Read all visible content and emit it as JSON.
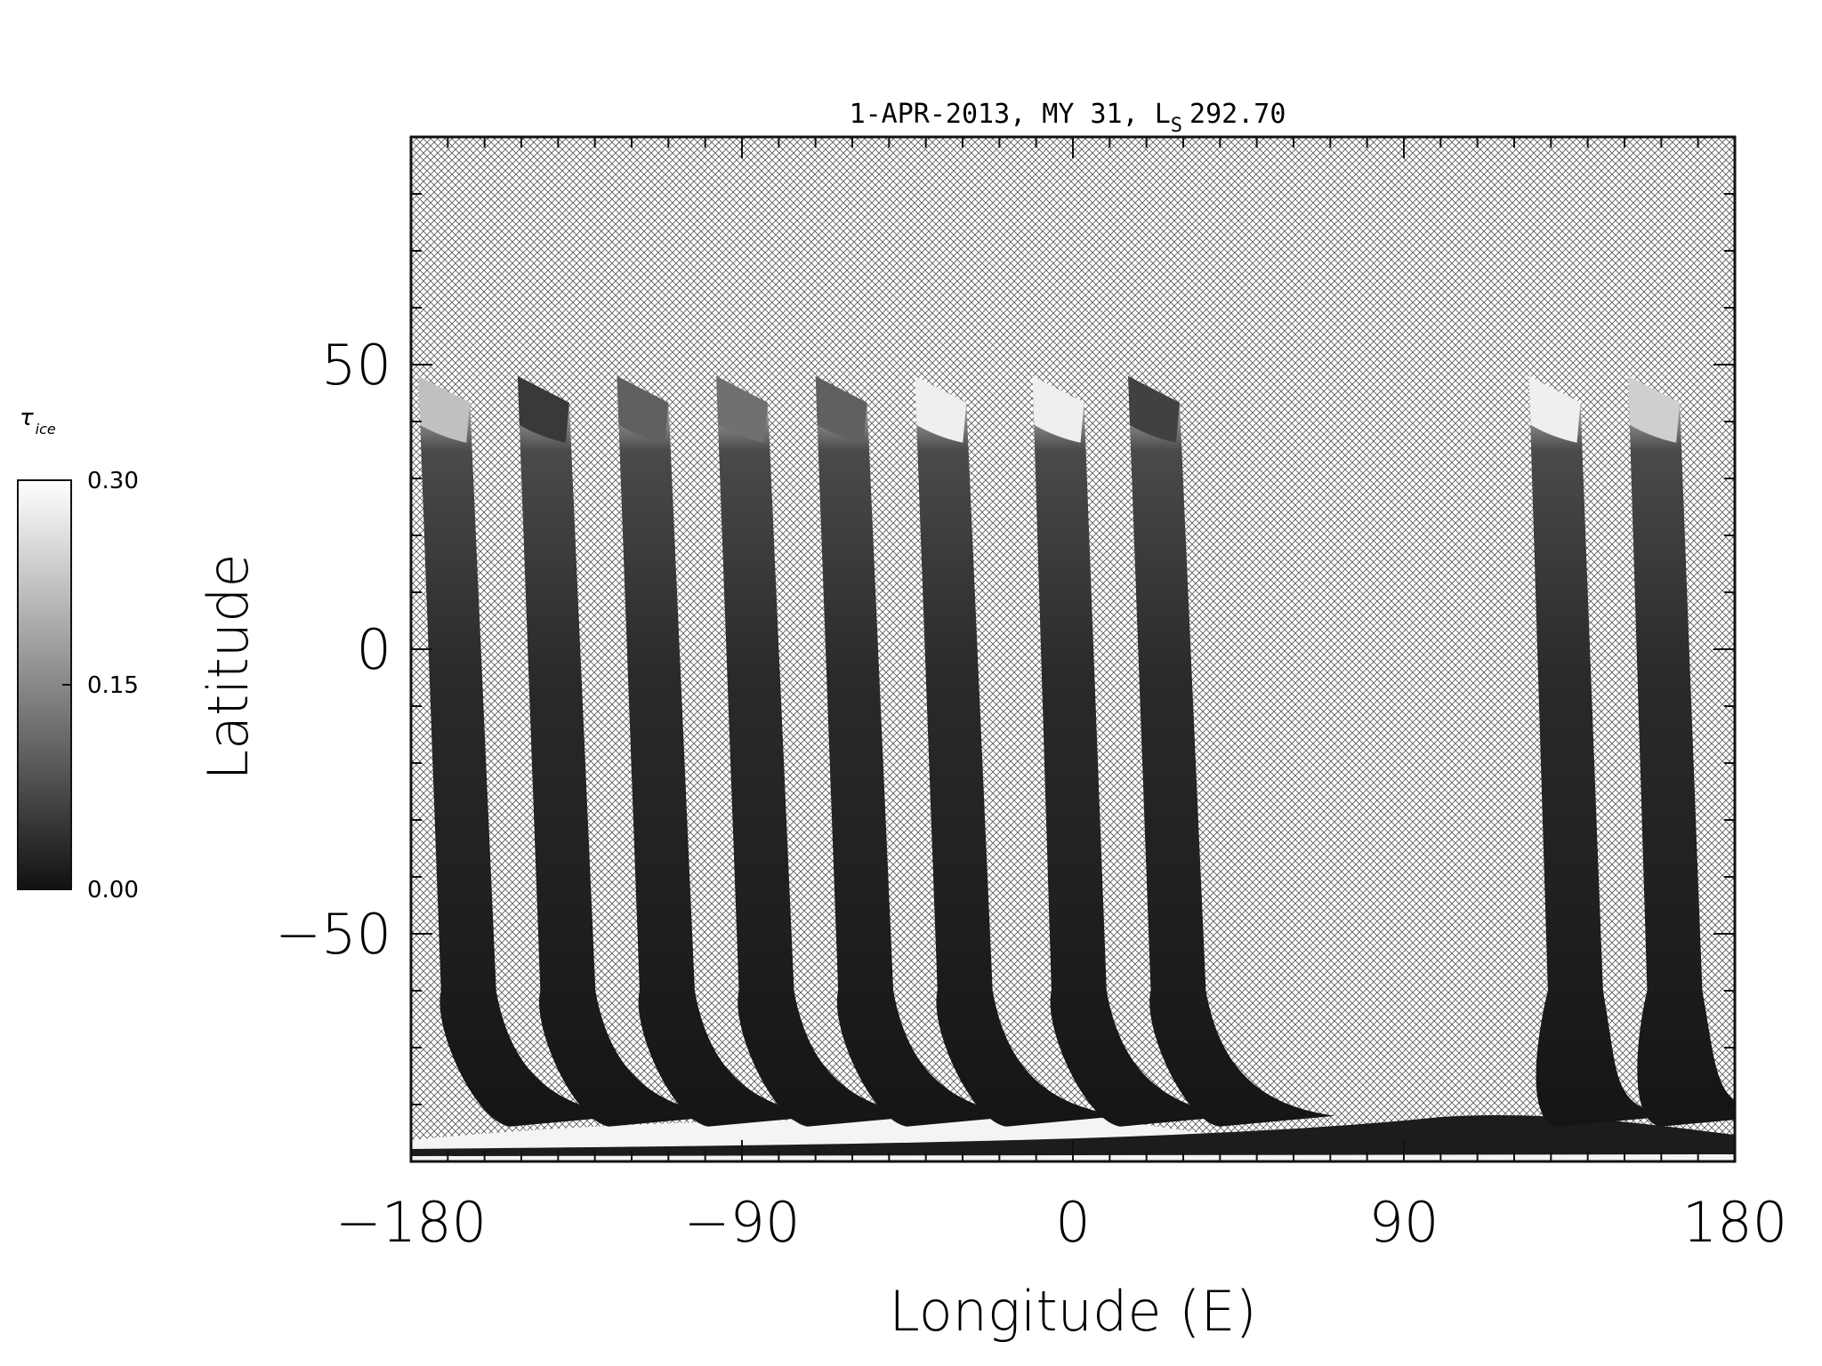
{
  "chart_data": {
    "type": "heatmap",
    "title": {
      "main": "1-APR-2013, MY 31,  L",
      "subscript": "S",
      "value": "292.70"
    },
    "xlabel": "Longitude (E)",
    "ylabel": "Latitude",
    "xlim": [
      -180,
      180
    ],
    "ylim": [
      -90,
      90
    ],
    "xticks": [
      -180,
      -90,
      0,
      90,
      180
    ],
    "xtick_labels": [
      "−180",
      "−90",
      "0",
      "90",
      "180"
    ],
    "yticks": [
      -50,
      0,
      50
    ],
    "ytick_labels": [
      "−50",
      "0",
      "50"
    ],
    "x_minor_step": 10,
    "y_minor_step": 10,
    "no_data_fill": "cross-hatch",
    "colorbar": {
      "label": "τ",
      "label_subscript": "ice",
      "min": 0.0,
      "max": 0.3,
      "ticks": [
        0.0,
        0.15,
        0.3
      ],
      "tick_labels": [
        "0.00",
        "0.15",
        "0.30"
      ],
      "colormap": "grayscale",
      "low_color": "#111111",
      "high_color": "#ffffff"
    },
    "swaths": [
      {
        "lon_north": -178,
        "lon_mid": -167,
        "lon_south": -158,
        "peak_tau": 0.22
      },
      {
        "lon_north": -151,
        "lon_mid": -140,
        "lon_south": -131,
        "peak_tau": 0.05
      },
      {
        "lon_north": -124,
        "lon_mid": -113,
        "lon_south": -104,
        "peak_tau": 0.1
      },
      {
        "lon_north": -97,
        "lon_mid": -86,
        "lon_south": -77,
        "peak_tau": 0.12
      },
      {
        "lon_north": -70,
        "lon_mid": -59,
        "lon_south": -50,
        "peak_tau": 0.1
      },
      {
        "lon_north": -43,
        "lon_mid": -32,
        "lon_south": -23,
        "peak_tau": 0.28
      },
      {
        "lon_north": -11,
        "lon_mid": -1,
        "lon_south": 8,
        "peak_tau": 0.28
      },
      {
        "lon_north": 15,
        "lon_mid": 26,
        "lon_south": 35,
        "peak_tau": 0.06
      },
      {
        "lon_north": 124,
        "lon_mid": 134,
        "lon_south": 127,
        "peak_tau": 0.28
      },
      {
        "lon_north": 151,
        "lon_mid": 161,
        "lon_south": 155,
        "peak_tau": 0.24
      }
    ],
    "south_polar_cap": {
      "lat_edge": -80,
      "tau": 0.3
    }
  }
}
